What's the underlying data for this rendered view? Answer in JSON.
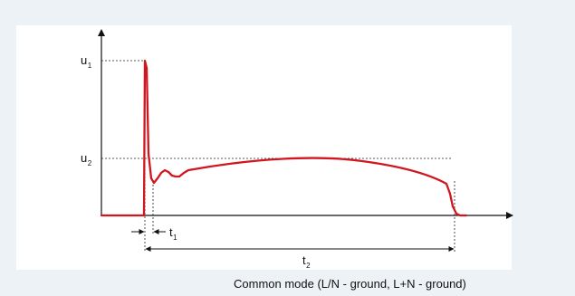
{
  "diagram": {
    "labels": {
      "u1": {
        "main": "u",
        "sub": "1"
      },
      "u2": {
        "main": "u",
        "sub": "2"
      },
      "t1": {
        "main": "t",
        "sub": "1"
      },
      "t2": {
        "main": "t",
        "sub": "2"
      }
    },
    "caption": "Common mode (L/N - ground, L+N - ground)",
    "colors": {
      "background": "#edf2f7",
      "panel": "#ffffff",
      "curve": "#d0161f",
      "axes": "#111111",
      "guides": "#222222"
    }
  }
}
